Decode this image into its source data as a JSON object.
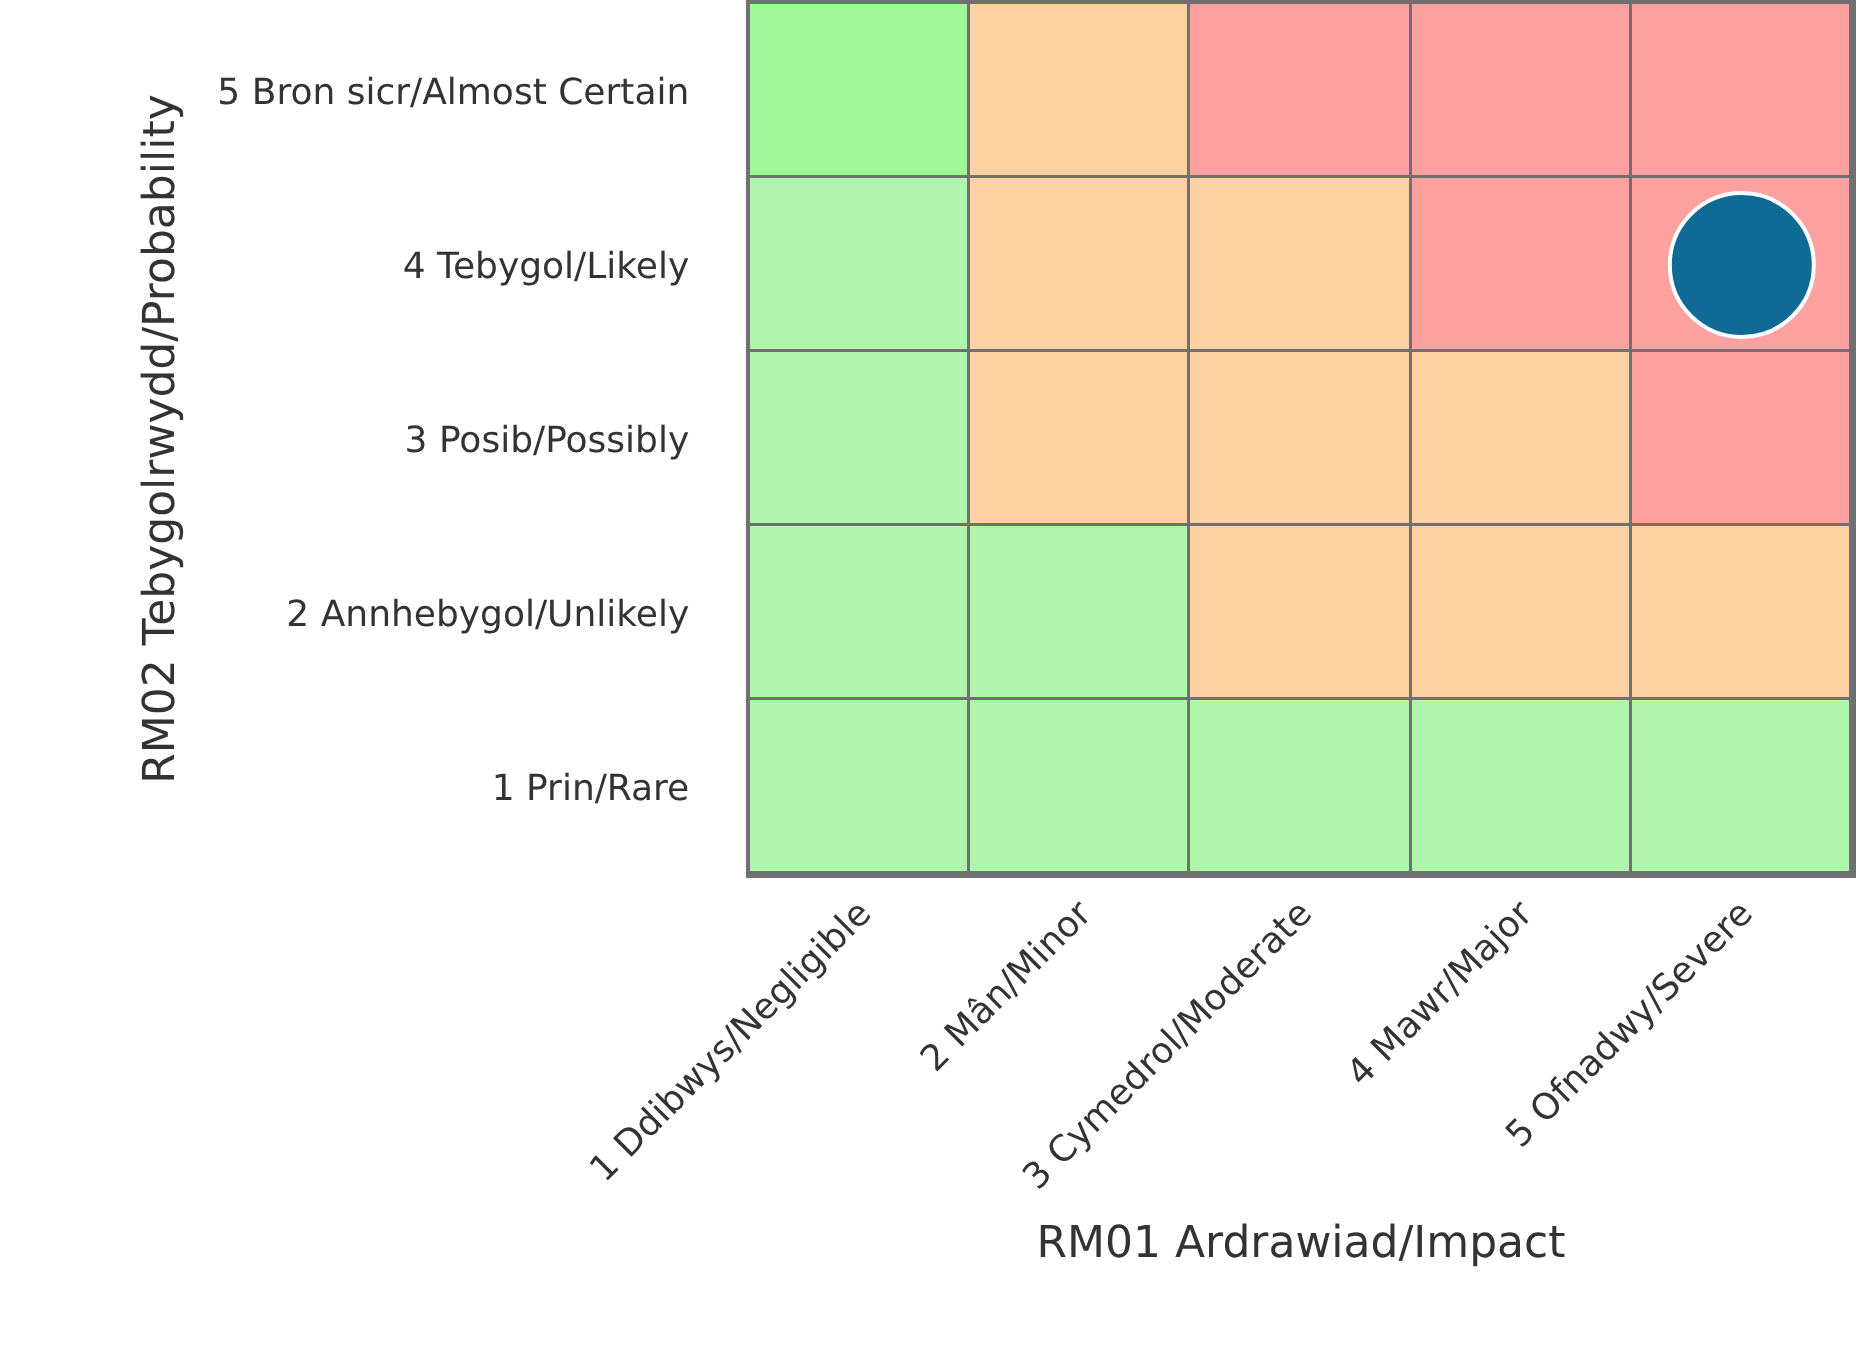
{
  "chart_data": {
    "type": "bar",
    "stacked": true,
    "xlabel": "RM01 Ardrawiad/Impact",
    "ylabel": "RM02 Tebygolrwydd/Probability",
    "categories": [
      "1 Ddibwys/Negligible",
      "2 Mân/Minor",
      "3 Cymedrol/Moderate",
      "4 Mawr/Major",
      "5 Ofnadwy/Severe"
    ],
    "ylim": [
      0,
      5
    ],
    "yticks": [
      {
        "value": 0.5,
        "label": "1 Prin/Rare"
      },
      {
        "value": 1.5,
        "label": "2 Annhebygol/Unlikely"
      },
      {
        "value": 2.5,
        "label": "3 Posib/Possibly"
      },
      {
        "value": 3.5,
        "label": "4 Tebygol/Likely"
      },
      {
        "value": 4.5,
        "label": "5 Bron sicr/Almost Certain"
      }
    ],
    "legend": false,
    "marker": "circle",
    "series": [
      {
        "values": [
          1,
          1,
          1,
          1,
          1
        ],
        "colors": [
          "#b0f5ac",
          "#b0f5ac",
          "#b0f5ac",
          "#b0f5ac",
          "#b0f5ac"
        ]
      },
      {
        "values": [
          1,
          1,
          1,
          1,
          1
        ],
        "colors": [
          "#b0f5ac",
          "#b0f5ac",
          "#fdd1a2",
          "#fdd1a2",
          "#fdd1a2"
        ]
      },
      {
        "values": [
          1,
          1,
          1,
          1,
          1
        ],
        "colors": [
          "#b0f5ac",
          "#fdd1a2",
          "#fdd1a2",
          "#fdd1a2",
          "#fda0a0"
        ]
      },
      {
        "values": [
          1,
          1,
          1,
          1,
          1
        ],
        "colors": [
          "#b0f5ac",
          "#fdd1a2",
          "#fdd1a2",
          "#fda0a0",
          "#fda0a0"
        ]
      },
      {
        "values": [
          1,
          1,
          1,
          1,
          1
        ],
        "colors": [
          "#a0f79a",
          "#fdd1a2",
          "#fda0a0",
          "#fda0a0",
          "#fda0a0"
        ]
      },
      {
        "type": "scatter",
        "color": "#0f6b96",
        "values": [
          null,
          null,
          null,
          null,
          3.5
        ]
      }
    ]
  }
}
